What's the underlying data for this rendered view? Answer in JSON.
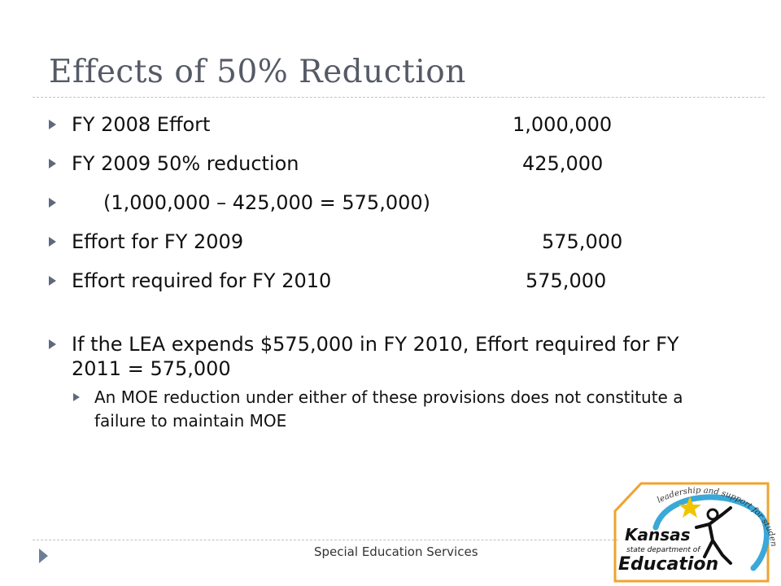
{
  "slide": {
    "title": "Effects of 50% Reduction",
    "bullets": [
      {
        "label": "FY 2008 Effort",
        "value": "1,000,000"
      },
      {
        "label": "FY 2009 50% reduction",
        "value": "425,000"
      },
      {
        "label": "(1,000,000 – 425,000 = 575,000)"
      },
      {
        "label": "Effort for FY 2009",
        "value": "575,000"
      },
      {
        "label": "Effort required for FY 2010",
        "value": "575,000"
      }
    ],
    "main_bullet": "If the LEA expends $575,000 in FY 2010, Effort required for FY 2011 = 575,000",
    "sub_bullet": "An MOE reduction under either of these provisions does not constitute a failure to maintain MOE",
    "footer": "Special Education Services",
    "logo": {
      "tagline": "leadership and support for student learning",
      "line1": "Kansas",
      "line2": "state department of",
      "line3": "Education",
      "accent_color": "#3aa8d8",
      "star_color": "#f2c400"
    }
  }
}
